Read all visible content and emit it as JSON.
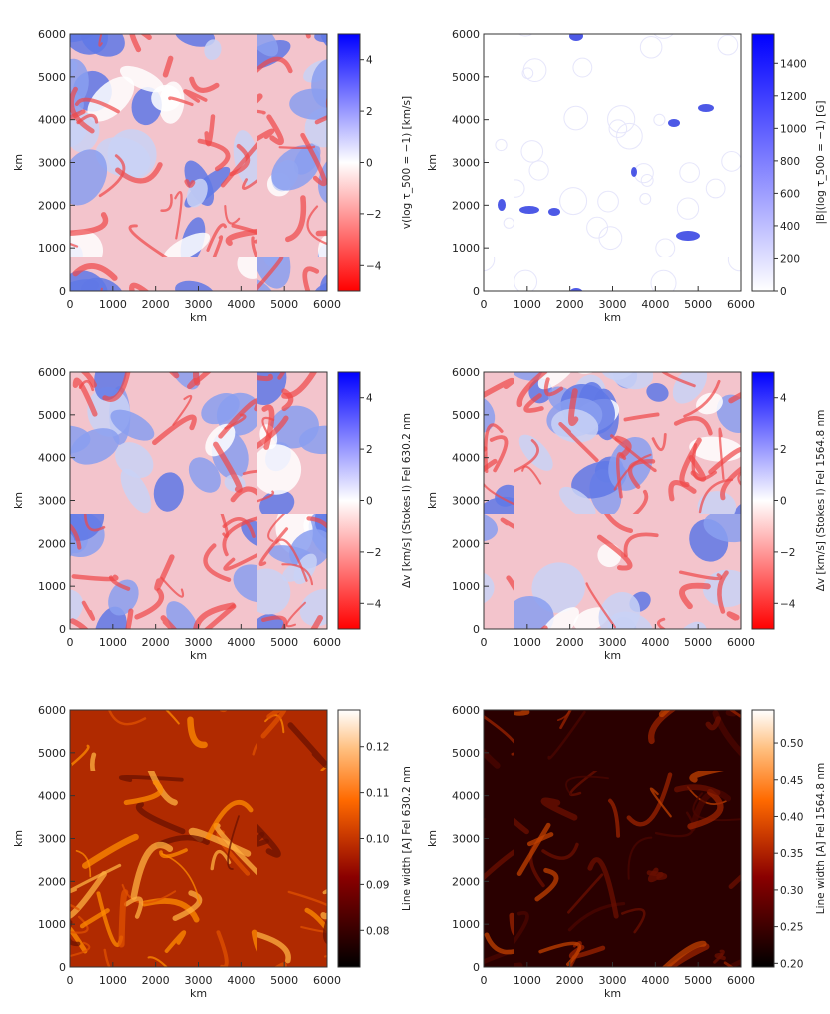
{
  "chart_data": [
    {
      "type": "heatmap",
      "panel": "top-left",
      "xlabel": "km",
      "ylabel": "km",
      "xlim": [
        0,
        6000
      ],
      "ylim": [
        0,
        6000
      ],
      "xticks": [
        "0",
        "1000",
        "2000",
        "3000",
        "4000",
        "5000",
        "6000"
      ],
      "yticks": [
        "0",
        "1000",
        "2000",
        "3000",
        "4000",
        "5000",
        "6000"
      ],
      "colorbar": {
        "label": "v(log τ_500 = −1) [km/s]",
        "colormap": "red-white-blue",
        "low_color": "#ff0000",
        "mid_color": "#ffffff",
        "high_color": "#0000ff",
        "range": [
          -5,
          5
        ],
        "ticks": [
          "−4",
          "−2",
          "0",
          "2",
          "4"
        ]
      }
    },
    {
      "type": "heatmap",
      "panel": "top-right",
      "xlabel": "km",
      "ylabel": "km",
      "xlim": [
        0,
        6000
      ],
      "ylim": [
        0,
        6000
      ],
      "xticks": [
        "0",
        "1000",
        "2000",
        "3000",
        "4000",
        "5000",
        "6000"
      ],
      "yticks": [
        "0",
        "1000",
        "2000",
        "3000",
        "4000",
        "5000",
        "6000"
      ],
      "colorbar": {
        "label": "|B|(log τ_500 = −1) [G]",
        "colormap": "white-blue",
        "low_color": "#ffffff",
        "high_color": "#0000ff",
        "range": [
          0,
          1580
        ],
        "ticks": [
          "0",
          "200",
          "400",
          "600",
          "800",
          "1000",
          "1200",
          "1400"
        ]
      }
    },
    {
      "type": "heatmap",
      "panel": "middle-left",
      "xlabel": "km",
      "ylabel": "km",
      "xlim": [
        0,
        6000
      ],
      "ylim": [
        0,
        6000
      ],
      "xticks": [
        "0",
        "1000",
        "2000",
        "3000",
        "4000",
        "5000",
        "6000"
      ],
      "yticks": [
        "0",
        "1000",
        "2000",
        "3000",
        "4000",
        "5000",
        "6000"
      ],
      "colorbar": {
        "label": "Δv [km/s] (Stokes I) FeI 630.2 nm",
        "colormap": "red-white-blue",
        "low_color": "#ff0000",
        "mid_color": "#ffffff",
        "high_color": "#0000ff",
        "range": [
          -5,
          5
        ],
        "ticks": [
          "−4",
          "−2",
          "0",
          "2",
          "4"
        ]
      }
    },
    {
      "type": "heatmap",
      "panel": "middle-right",
      "xlabel": "km",
      "ylabel": "km",
      "xlim": [
        0,
        6000
      ],
      "ylim": [
        0,
        6000
      ],
      "xticks": [
        "0",
        "1000",
        "2000",
        "3000",
        "4000",
        "5000",
        "6000"
      ],
      "yticks": [
        "0",
        "1000",
        "2000",
        "3000",
        "4000",
        "5000",
        "6000"
      ],
      "colorbar": {
        "label": "Δv [km/s] (Stokes I) FeI 1564.8 nm",
        "colormap": "red-white-blue",
        "low_color": "#ff0000",
        "mid_color": "#ffffff",
        "high_color": "#0000ff",
        "range": [
          -5,
          5
        ],
        "ticks": [
          "−4",
          "−2",
          "0",
          "2",
          "4"
        ]
      }
    },
    {
      "type": "heatmap",
      "panel": "bottom-left",
      "xlabel": "km",
      "ylabel": "km",
      "xlim": [
        0,
        6000
      ],
      "ylim": [
        0,
        6000
      ],
      "xticks": [
        "0",
        "1000",
        "2000",
        "3000",
        "4000",
        "5000",
        "6000"
      ],
      "yticks": [
        "0",
        "1000",
        "2000",
        "3000",
        "4000",
        "5000",
        "6000"
      ],
      "colorbar": {
        "label": "Line width [A] FeI 630.2 nm",
        "colormap": "heat",
        "low_color": "#000000",
        "high_color": "#ffffff",
        "range": [
          0.072,
          0.128
        ],
        "ticks": [
          "0.08",
          "0.09",
          "0.10",
          "0.11",
          "0.12"
        ]
      }
    },
    {
      "type": "heatmap",
      "panel": "bottom-right",
      "xlabel": "km",
      "ylabel": "km",
      "xlim": [
        0,
        6000
      ],
      "ylim": [
        0,
        6000
      ],
      "xticks": [
        "0",
        "1000",
        "2000",
        "3000",
        "4000",
        "5000",
        "6000"
      ],
      "yticks": [
        "0",
        "1000",
        "2000",
        "3000",
        "4000",
        "5000",
        "6000"
      ],
      "colorbar": {
        "label": "Line width [A] FeI 1564.8 nm",
        "colormap": "heat",
        "low_color": "#000000",
        "high_color": "#ffffff",
        "range": [
          0.195,
          0.545
        ],
        "ticks": [
          "0.20",
          "0.25",
          "0.30",
          "0.35",
          "0.40",
          "0.45",
          "0.50"
        ]
      }
    }
  ]
}
